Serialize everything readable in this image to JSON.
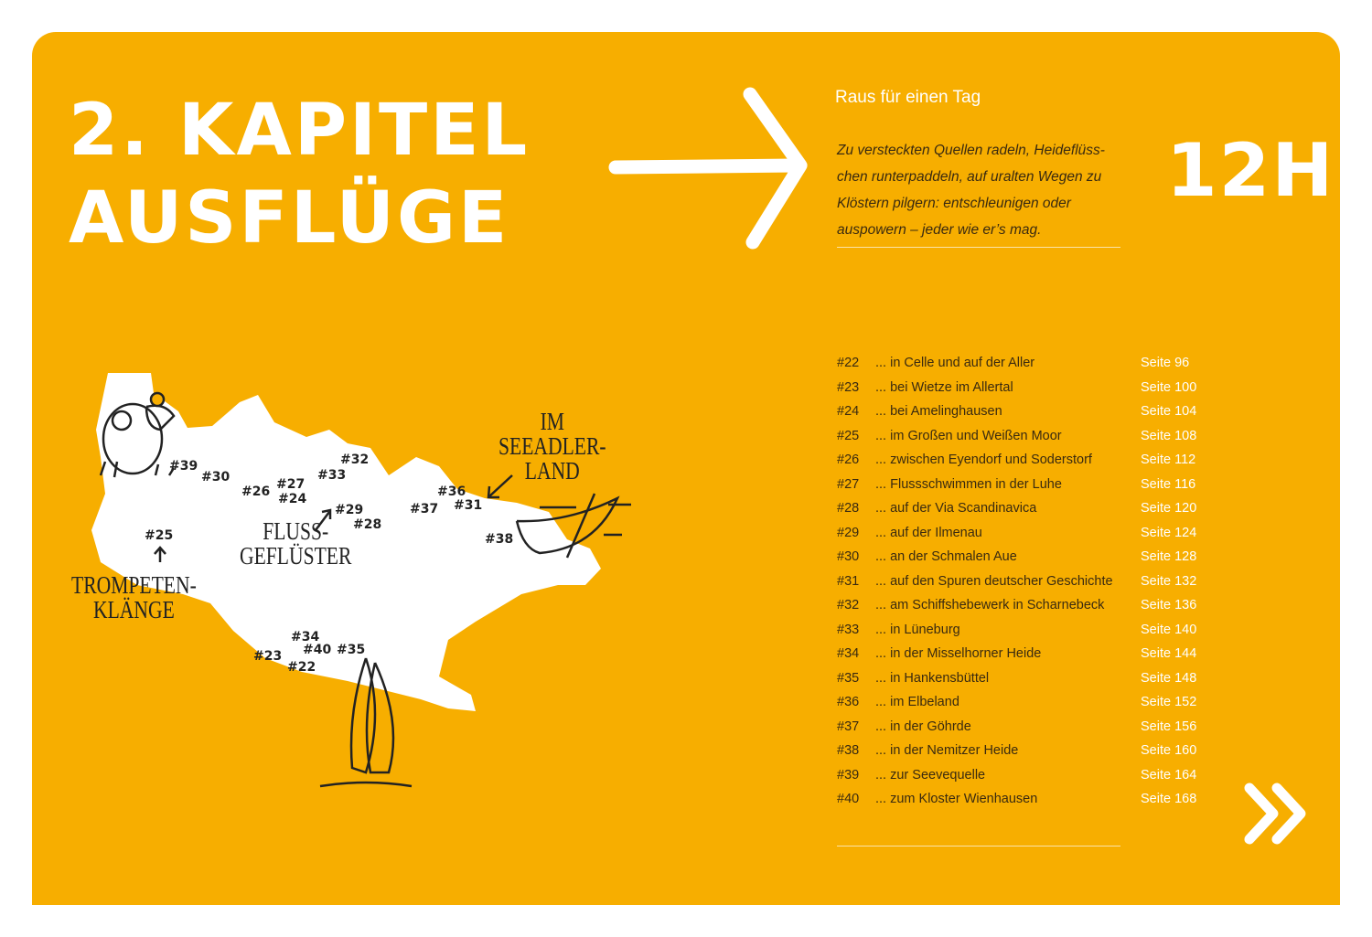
{
  "chapter": {
    "line1": "2. KAPITEL",
    "line2": "AUSFLÜGE"
  },
  "subtitle": "Raus für einen Tag",
  "intro": "Zu versteckten Quellen radeln, Heideflüss-chen runterpaddeln, auf uralten Wegen zu Klöstern pilgern: entschleunigen oder auspowern – jeder wie er’s mag.",
  "duration": "12H",
  "colors": {
    "background": "#F7AE00",
    "text": "#3a2a10",
    "accent": "#ffffff"
  },
  "toc": [
    {
      "num": "#22",
      "label": "... in Celle und auf der Aller",
      "page": "Seite 96"
    },
    {
      "num": "#23",
      "label": "... bei Wietze im Allertal",
      "page": "Seite 100"
    },
    {
      "num": "#24",
      "label": "... bei Amelinghausen",
      "page": "Seite 104"
    },
    {
      "num": "#25",
      "label": "... im Großen und Weißen Moor",
      "page": "Seite 108"
    },
    {
      "num": "#26",
      "label": "... zwischen Eyendorf und Soderstorf",
      "page": "Seite 112"
    },
    {
      "num": "#27",
      "label": "... Flussschwimmen in der Luhe",
      "page": "Seite 116"
    },
    {
      "num": "#28",
      "label": "... auf der Via Scandinavica",
      "page": "Seite 120"
    },
    {
      "num": "#29",
      "label": "... auf der Ilmenau",
      "page": "Seite 124"
    },
    {
      "num": "#30",
      "label": "... an der Schmalen Aue",
      "page": "Seite 128"
    },
    {
      "num": "#31",
      "label": "... auf den Spuren deutscher Geschichte",
      "page": "Seite 132"
    },
    {
      "num": "#32",
      "label": "... am Schiffshebewerk in Scharnebeck",
      "page": "Seite 136"
    },
    {
      "num": "#33",
      "label": "... in Lüneburg",
      "page": "Seite 140"
    },
    {
      "num": "#34",
      "label": "... in der Misselhorner Heide",
      "page": "Seite 144"
    },
    {
      "num": "#35",
      "label": "... in Hankensbüttel",
      "page": "Seite 148"
    },
    {
      "num": "#36",
      "label": "... im Elbeland",
      "page": "Seite 152"
    },
    {
      "num": "#37",
      "label": "... in der Göhrde",
      "page": "Seite 156"
    },
    {
      "num": "#38",
      "label": "... in der Nemitzer Heide",
      "page": "Seite 160"
    },
    {
      "num": "#39",
      "label": "... zur Seevequelle",
      "page": "Seite 164"
    },
    {
      "num": "#40",
      "label": "... zum Kloster Wienhausen",
      "page": "Seite 168"
    }
  ],
  "map": {
    "markers": [
      "#39",
      "#30",
      "#26",
      "#27",
      "#24",
      "#33",
      "#32",
      "#29",
      "#28",
      "#25",
      "#37",
      "#36",
      "#31",
      "#38",
      "#34",
      "#40",
      "#35",
      "#23",
      "#22"
    ],
    "labels": {
      "fluss1": "FLUSS-",
      "fluss2": "GEFLÜSTER",
      "trompeten1": "TROMPETEN-",
      "trompeten2": "KLÄNGE",
      "see1": "IM",
      "see2": "SEEADLER-",
      "see3": "LAND"
    }
  }
}
